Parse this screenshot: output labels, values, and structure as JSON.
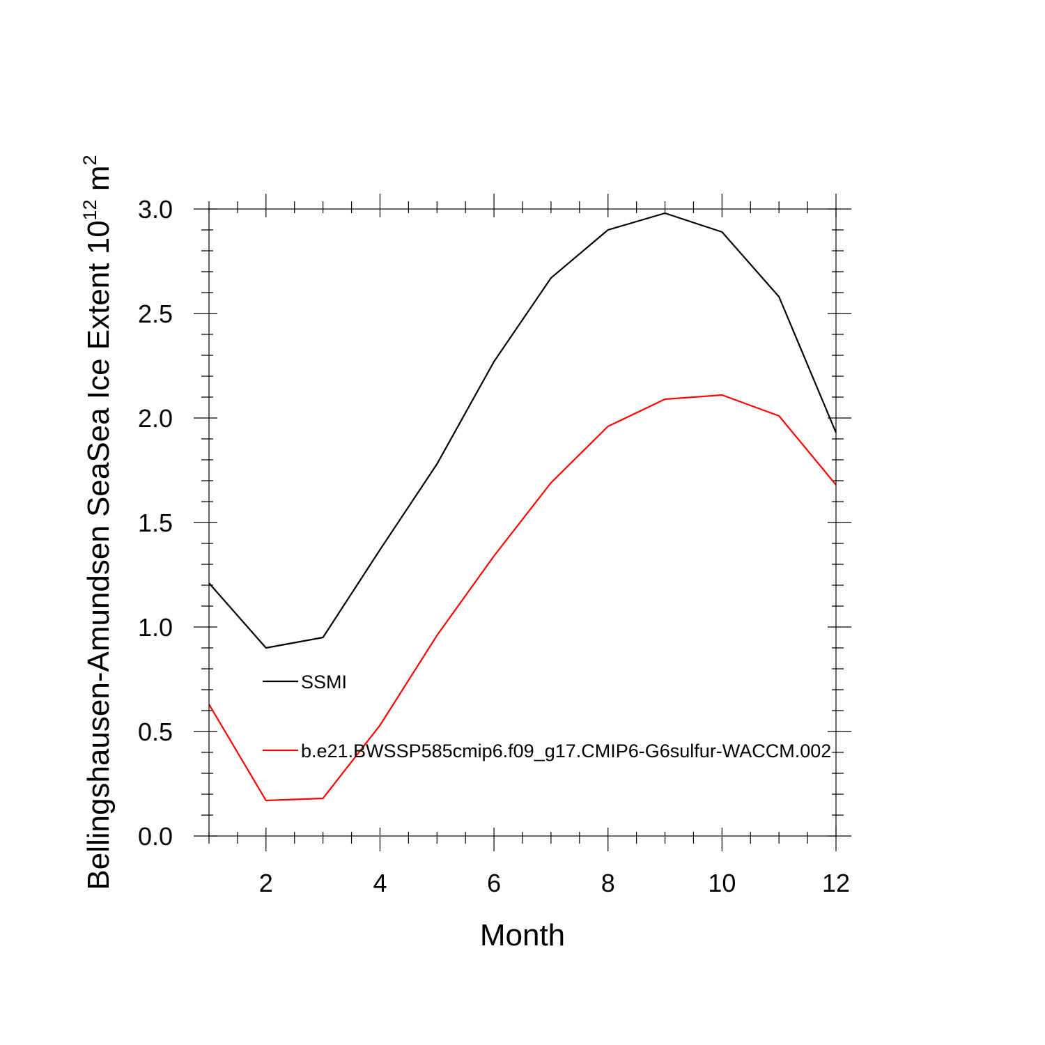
{
  "chart_data": {
    "type": "line",
    "xlabel": "Month",
    "ylabel": "Bellingshausen-Amundsen SeaSea Ice Extent 10",
    "ylabel_sup1": "12",
    "ylabel_unit": " m",
    "ylabel_sup2": "2",
    "xlim": [
      1,
      12
    ],
    "ylim": [
      0,
      3
    ],
    "x_ticks": [
      2,
      4,
      6,
      8,
      10,
      12
    ],
    "x_tick_labels": [
      "2",
      "4",
      "6",
      "8",
      "10",
      "12"
    ],
    "y_ticks": [
      0,
      0.5,
      1.0,
      1.5,
      2.0,
      2.5,
      3.0
    ],
    "y_tick_labels": [
      "0.0",
      "0.5",
      "1.0",
      "1.5",
      "2.0",
      "2.5",
      "3.0"
    ],
    "grid": false,
    "legend_position": "inside-left",
    "x": [
      1,
      2,
      3,
      4,
      5,
      6,
      7,
      8,
      9,
      10,
      11,
      12
    ],
    "series": [
      {
        "name": "SSMI",
        "color": "#000000",
        "values": [
          1.21,
          0.9,
          0.95,
          1.37,
          1.78,
          2.27,
          2.67,
          2.9,
          2.98,
          2.89,
          2.58,
          1.93
        ]
      },
      {
        "name": "b.e21.BWSSP585cmip6.f09_g17.CMIP6-G6sulfur-WACCM.002",
        "color": "#ff0000",
        "values": [
          0.63,
          0.17,
          0.18,
          0.53,
          0.96,
          1.34,
          1.69,
          1.96,
          2.09,
          2.11,
          2.01,
          1.68
        ]
      }
    ]
  }
}
